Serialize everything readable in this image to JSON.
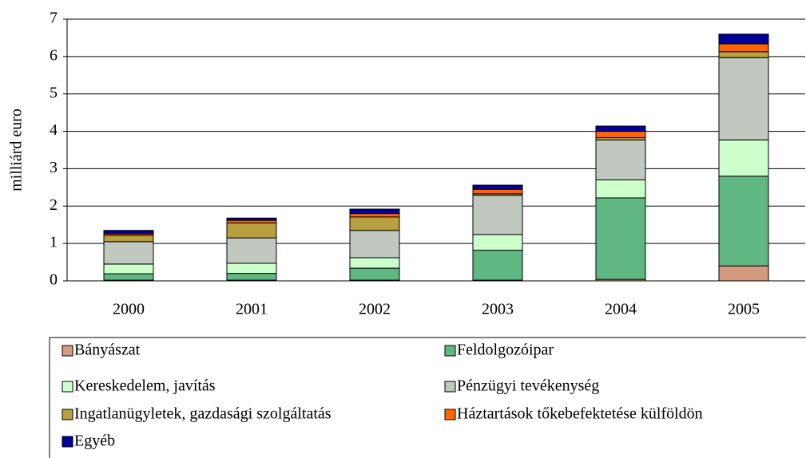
{
  "chart_data": {
    "type": "stacked_bar",
    "y_label": "milliárd euro",
    "categories": [
      "2000",
      "2001",
      "2002",
      "2003",
      "2004",
      "2005"
    ],
    "series": [
      {
        "name": "Bányászat",
        "color": "#d49a80",
        "values": [
          0.02,
          0.02,
          0.02,
          0.02,
          0.04,
          0.4
        ]
      },
      {
        "name": "Feldolgozóipar",
        "color": "#5fb882",
        "values": [
          0.17,
          0.18,
          0.32,
          0.8,
          2.18,
          2.4
        ]
      },
      {
        "name": "Kereskedelem, javítás",
        "color": "#ccffcc",
        "values": [
          0.26,
          0.27,
          0.28,
          0.42,
          0.48,
          0.97
        ]
      },
      {
        "name": "Pénzügyi tevékenység",
        "color": "#c0c8c0",
        "values": [
          0.6,
          0.68,
          0.73,
          1.05,
          1.07,
          2.2
        ]
      },
      {
        "name": "Ingatlanügyletek, gazdasági szolgáltatás",
        "color": "#b8a040",
        "values": [
          0.17,
          0.4,
          0.36,
          0.04,
          0.06,
          0.16
        ]
      },
      {
        "name": "Háztartások tőkebefektetése külföldön",
        "color": "#ff6600",
        "values": [
          0.04,
          0.07,
          0.09,
          0.12,
          0.17,
          0.21
        ]
      },
      {
        "name": "Egyéb",
        "color": "#000099",
        "values": [
          0.09,
          0.06,
          0.12,
          0.11,
          0.14,
          0.26
        ]
      }
    ],
    "ylim": [
      0,
      7
    ],
    "yticks": [
      0,
      1,
      2,
      3,
      4,
      5,
      6,
      7
    ],
    "grid": true
  }
}
